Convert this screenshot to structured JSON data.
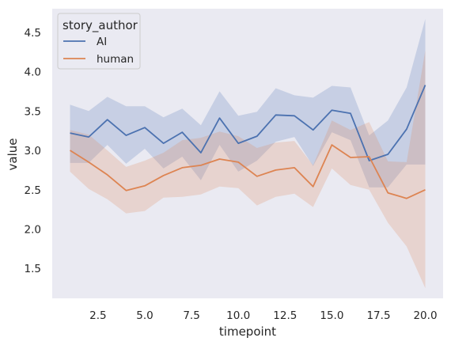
{
  "chart_data": {
    "type": "line",
    "title": "",
    "xlabel": "timepoint",
    "ylabel": "value",
    "xlim": [
      0.05,
      20.95
    ],
    "ylim": [
      1.12,
      4.8
    ],
    "x_ticks": [
      2.5,
      5.0,
      7.5,
      10.0,
      12.5,
      15.0,
      17.5,
      20.0
    ],
    "x_tick_labels": [
      "2.5",
      "5.0",
      "7.5",
      "10.0",
      "12.5",
      "15.0",
      "17.5",
      "20.0"
    ],
    "y_ticks": [
      1.5,
      2.0,
      2.5,
      3.0,
      3.5,
      4.0,
      4.5
    ],
    "y_tick_labels": [
      "1.5",
      "2.0",
      "2.5",
      "3.0",
      "3.5",
      "4.0",
      "4.5"
    ],
    "grid": false,
    "background": "#eaeaf2",
    "legend": {
      "title": "story_author",
      "placement": "top-left"
    },
    "x": [
      1,
      2,
      3,
      4,
      5,
      6,
      7,
      8,
      9,
      10,
      11,
      12,
      13,
      14,
      15,
      16,
      17,
      18,
      19,
      20
    ],
    "series": [
      {
        "name": "AI",
        "color": "#4c72b0",
        "values": [
          3.22,
          3.17,
          3.39,
          3.19,
          3.29,
          3.09,
          3.23,
          2.97,
          3.41,
          3.09,
          3.18,
          3.45,
          3.44,
          3.26,
          3.51,
          3.47,
          2.87,
          2.95,
          3.27,
          3.83
        ],
        "ci_low": [
          2.84,
          2.84,
          3.07,
          2.83,
          3.02,
          2.77,
          2.92,
          2.62,
          3.07,
          2.73,
          2.87,
          3.11,
          3.17,
          2.8,
          3.23,
          3.13,
          2.53,
          2.53,
          2.82,
          2.82
        ],
        "ci_high": [
          3.58,
          3.5,
          3.68,
          3.56,
          3.56,
          3.42,
          3.53,
          3.32,
          3.75,
          3.44,
          3.49,
          3.79,
          3.7,
          3.67,
          3.82,
          3.8,
          3.19,
          3.38,
          3.8,
          4.67
        ]
      },
      {
        "name": "human",
        "color": "#dd8452",
        "values": [
          3.0,
          2.85,
          2.69,
          2.49,
          2.55,
          2.68,
          2.78,
          2.81,
          2.89,
          2.85,
          2.67,
          2.75,
          2.78,
          2.54,
          3.07,
          2.91,
          2.92,
          2.46,
          2.39,
          2.5
        ],
        "ci_low": [
          2.73,
          2.51,
          2.38,
          2.2,
          2.23,
          2.4,
          2.41,
          2.44,
          2.54,
          2.52,
          2.3,
          2.41,
          2.45,
          2.28,
          2.77,
          2.56,
          2.5,
          2.08,
          1.78,
          1.25
        ],
        "ci_high": [
          3.26,
          3.2,
          3.0,
          2.79,
          2.87,
          2.97,
          3.13,
          3.16,
          3.24,
          3.18,
          3.03,
          3.1,
          3.12,
          2.81,
          3.38,
          3.26,
          3.36,
          2.86,
          2.85,
          4.27
        ]
      }
    ]
  }
}
